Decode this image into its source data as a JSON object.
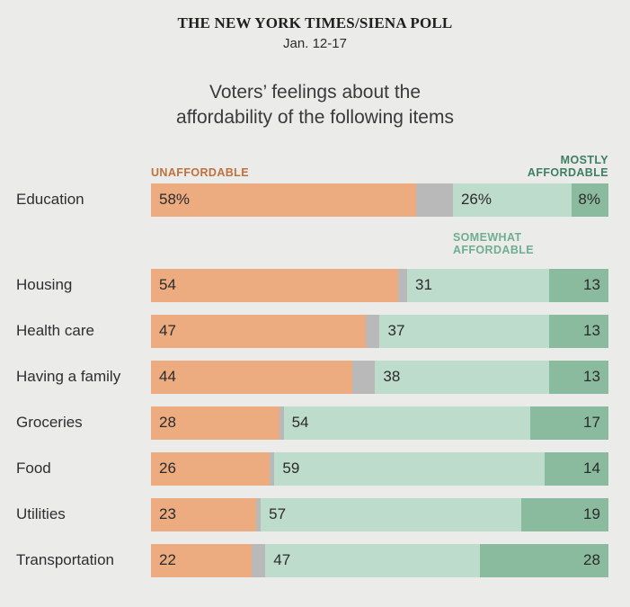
{
  "page": {
    "background": "#ebebe9",
    "kicker": "THE NEW YORK TIMES/SIENA POLL",
    "date": "Jan. 12-17",
    "title_line1": "Voters’ feelings about the",
    "title_line2": "affordability of the following items"
  },
  "legend": {
    "unaffordable_label": "UNAFFORDABLE",
    "somewhat_label": "SOMEWHAT AFFORDABLE",
    "mostly_label": "MOSTLY AFFORDABLE",
    "unaffordable_text_color": "#c0703d",
    "somewhat_text_color": "#6fae92",
    "mostly_text_color": "#3e7e63"
  },
  "colors": {
    "unaffordable_segment": "#edab80",
    "no_answer_segment": "#b9b9b9",
    "somewhat_segment": "#bedccb",
    "mostly_segment": "#8abb9e",
    "value_text": "#2b2b2b",
    "category_text": "#2e2e2e",
    "background": "#ebebe9"
  },
  "chart_data": {
    "type": "bar",
    "variant": "horizontal-stacked",
    "title": "Voters’ feelings about the affordability of the following items",
    "source": "THE NEW YORK TIMES/SIENA POLL, Jan. 12-17",
    "xlim": [
      0,
      100
    ],
    "grid": false,
    "legend_position": "above chart, colored text labels",
    "categories": [
      "Education",
      "Housing",
      "Health care",
      "Having a family",
      "Groceries",
      "Food",
      "Utilities",
      "Transportation"
    ],
    "series": [
      {
        "name": "Unaffordable",
        "color": "#edab80",
        "values": [
          58,
          54,
          47,
          44,
          28,
          26,
          23,
          22
        ]
      },
      {
        "name": "No answer (unlabeled gray)",
        "color": "#b9b9b9",
        "values": [
          8,
          2,
          3,
          5,
          1,
          1,
          1,
          3
        ]
      },
      {
        "name": "Somewhat affordable",
        "color": "#bedccb",
        "values": [
          26,
          31,
          37,
          38,
          54,
          59,
          57,
          47
        ]
      },
      {
        "name": "Mostly affordable",
        "color": "#8abb9e",
        "values": [
          8,
          13,
          13,
          13,
          17,
          14,
          19,
          28
        ]
      }
    ],
    "value_labels": [
      [
        "58%",
        "26%",
        "8%"
      ],
      [
        "54",
        "31",
        "13"
      ],
      [
        "47",
        "37",
        "13"
      ],
      [
        "44",
        "38",
        "13"
      ],
      [
        "28",
        "54",
        "17"
      ],
      [
        "26",
        "59",
        "14"
      ],
      [
        "23",
        "57",
        "19"
      ],
      [
        "22",
        "47",
        "28"
      ]
    ]
  }
}
